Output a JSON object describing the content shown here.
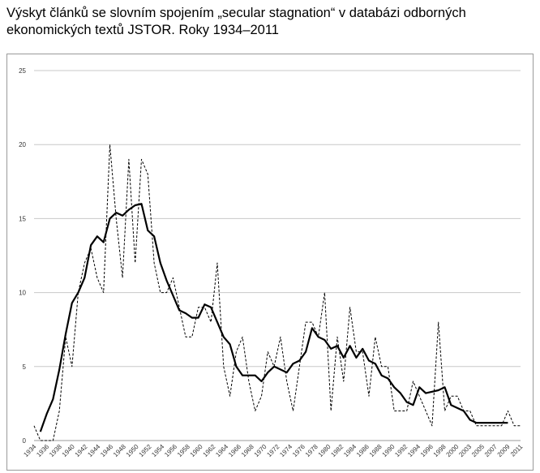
{
  "title": {
    "line1": "Výskyt článků se slovním spojením „secular stagnation“ v databázi odborných",
    "line2": "ekonomických textů JSTOR. Roky 1934–2011"
  },
  "chart_data": {
    "type": "line",
    "title": "Výskyt článků se slovním spojením „secular stagnation“ v databázi odborných ekonomických textů JSTOR. Roky 1934–2011",
    "xlabel": "",
    "ylabel": "",
    "ylim": [
      0,
      25
    ],
    "yticks": [
      0,
      5,
      10,
      15,
      20,
      25
    ],
    "grid": "horizontal",
    "legend": "none",
    "x_tick_labels": [
      "1934",
      "1936",
      "1938",
      "1940",
      "1942",
      "1944",
      "1946",
      "1948",
      "1950",
      "1952",
      "1954",
      "1956",
      "1958",
      "1960",
      "1962",
      "1964",
      "1966",
      "1968",
      "1970",
      "1972",
      "1974",
      "1976",
      "1978",
      "1980",
      "1982",
      "1984",
      "1986",
      "1988",
      "1990",
      "1992",
      "1994",
      "1996",
      "1998",
      "2000",
      "2003",
      "2005",
      "2007",
      "2009",
      "2011"
    ],
    "series": [
      {
        "style": "dashed",
        "color": "#000000",
        "x": [
          "1934",
          "1935",
          "1936",
          "1937",
          "1938",
          "1939",
          "1940",
          "1941",
          "1942",
          "1943",
          "1944",
          "1945",
          "1946",
          "1947",
          "1948",
          "1949",
          "1950",
          "1951",
          "1952",
          "1953",
          "1954",
          "1955",
          "1956",
          "1957",
          "1958",
          "1959",
          "1960",
          "1961",
          "1962",
          "1963",
          "1964",
          "1965",
          "1966",
          "1967",
          "1968",
          "1969",
          "1970",
          "1971",
          "1972",
          "1973",
          "1974",
          "1975",
          "1976",
          "1977",
          "1978",
          "1979",
          "1980",
          "1981",
          "1982",
          "1983",
          "1984",
          "1985",
          "1986",
          "1987",
          "1988",
          "1989",
          "1990",
          "1991",
          "1992",
          "1993",
          "1994",
          "1995",
          "1996",
          "1997",
          "1998",
          "1999",
          "2000",
          "2001",
          "2002",
          "2003",
          "2004",
          "2005",
          "2006",
          "2007",
          "2008",
          "2009",
          "2010",
          "2011"
        ],
        "values": [
          1,
          0,
          0,
          0,
          2,
          7,
          5,
          10,
          12,
          13,
          11,
          10,
          20,
          15,
          11,
          19,
          12,
          19,
          18,
          12,
          10,
          10,
          11,
          9,
          7,
          7,
          9,
          9,
          8,
          12,
          5,
          3,
          6,
          7,
          4,
          2,
          3,
          6,
          5,
          7,
          4,
          2,
          5,
          8,
          8,
          7,
          10,
          2,
          7,
          4,
          9,
          6,
          6,
          3,
          7,
          5,
          5,
          2,
          2,
          2,
          4,
          3,
          2,
          1,
          8,
          2,
          3,
          3,
          2,
          2,
          1,
          1,
          1,
          1,
          1,
          2,
          1,
          1
        ]
      },
      {
        "style": "solid",
        "color": "#000000",
        "x": [
          "1935",
          "1936",
          "1937",
          "1938",
          "1939",
          "1940",
          "1941",
          "1942",
          "1943",
          "1944",
          "1945",
          "1946",
          "1947",
          "1948",
          "1949",
          "1950",
          "1951",
          "1952",
          "1953",
          "1954",
          "1955",
          "1956",
          "1957",
          "1958",
          "1959",
          "1960",
          "1961",
          "1962",
          "1963",
          "1964",
          "1965",
          "1966",
          "1967",
          "1968",
          "1969",
          "1970",
          "1971",
          "1972",
          "1973",
          "1974",
          "1975",
          "1976",
          "1977",
          "1978",
          "1979",
          "1980",
          "1981",
          "1982",
          "1983",
          "1984",
          "1985",
          "1986",
          "1987",
          "1988",
          "1989",
          "1990",
          "1991",
          "1992",
          "1993",
          "1994",
          "1995",
          "1996",
          "1997",
          "1998",
          "1999",
          "2000",
          "2001",
          "2002",
          "2003",
          "2004",
          "2005",
          "2006",
          "2007",
          "2008",
          "2009"
        ],
        "values": [
          0.6,
          1.8,
          2.8,
          4.8,
          7.2,
          9.3,
          10,
          11,
          13.2,
          13.8,
          13.4,
          15,
          15.4,
          15.2,
          15.6,
          15.9,
          16,
          14.2,
          13.8,
          12,
          10.8,
          9.8,
          8.8,
          8.6,
          8.3,
          8.3,
          9.2,
          9,
          8,
          7,
          6.5,
          5,
          4.4,
          4.4,
          4.4,
          4,
          4.6,
          5,
          4.8,
          4.6,
          5.2,
          5.4,
          6,
          7.6,
          7,
          6.8,
          6.2,
          6.4,
          5.6,
          6.4,
          5.6,
          6.2,
          5.4,
          5.2,
          4.4,
          4.2,
          3.6,
          3.2,
          2.6,
          2.4,
          3.6,
          3.2,
          3.3,
          3.4,
          3.6,
          2.4,
          2.2,
          2,
          1.4,
          1.2,
          1.2,
          1.2,
          1.2,
          1.2,
          1.2
        ]
      }
    ]
  }
}
